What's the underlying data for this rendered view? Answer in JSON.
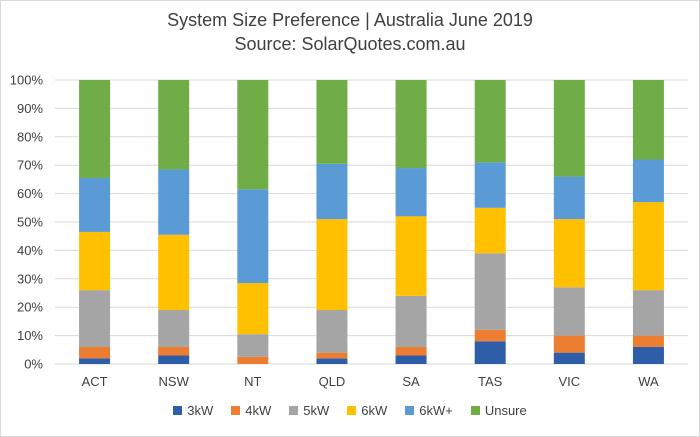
{
  "chart_data": {
    "type": "bar",
    "stacked": true,
    "normalized": true,
    "title": "System Size Preference  | Australia June 2019",
    "subtitle": "Source: SolarQuotes.com.au",
    "xlabel": "",
    "ylabel": "",
    "ylim": [
      0,
      100
    ],
    "yticks": [
      "0%",
      "10%",
      "20%",
      "30%",
      "40%",
      "50%",
      "60%",
      "70%",
      "80%",
      "90%",
      "100%"
    ],
    "grid": true,
    "legend_position": "bottom",
    "categories": [
      "ACT",
      "NSW",
      "NT",
      "QLD",
      "SA",
      "TAS",
      "VIC",
      "WA"
    ],
    "series": [
      {
        "name": "3kW",
        "color": "#2e5ea8",
        "values": [
          2,
          3,
          0,
          2,
          3,
          8,
          4,
          6
        ]
      },
      {
        "name": "4kW",
        "color": "#ed7d31",
        "values": [
          4,
          3,
          2.5,
          2,
          3,
          4,
          6,
          4
        ]
      },
      {
        "name": "5kW",
        "color": "#a5a5a5",
        "values": [
          20,
          13,
          8,
          15,
          18,
          27,
          17,
          16
        ]
      },
      {
        "name": "6kW",
        "color": "#ffc000",
        "values": [
          20.5,
          26.5,
          18,
          32,
          28,
          16,
          24,
          31
        ]
      },
      {
        "name": "6kW+",
        "color": "#5b9bd5",
        "values": [
          19,
          23,
          33,
          19.5,
          17,
          16,
          15,
          15
        ]
      },
      {
        "name": "Unsure",
        "color": "#70ad47",
        "values": [
          34.5,
          31.5,
          38.5,
          29.5,
          31,
          29,
          34,
          28
        ]
      }
    ]
  }
}
